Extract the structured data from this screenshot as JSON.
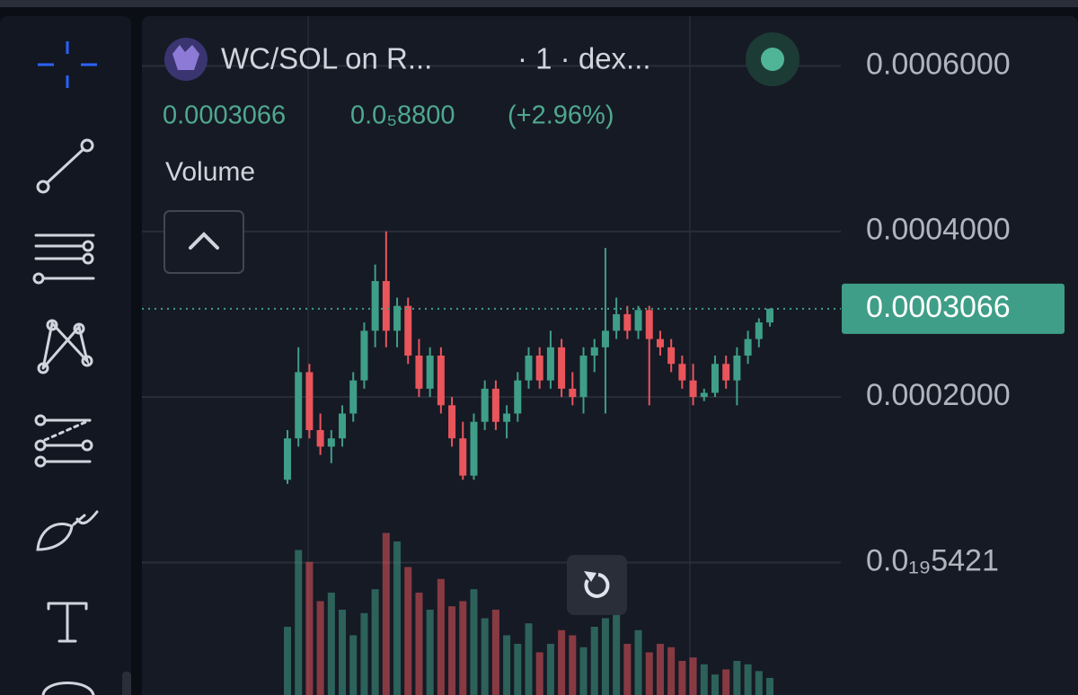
{
  "header": {
    "symbol": "WC/SOL on R...",
    "meta": "· 1 · dex...",
    "price": "0.0003066",
    "change": "0.0₅8800",
    "change_pct": "(+2.96%)",
    "indicator": "Volume"
  },
  "chart_data": {
    "type": "candlestick",
    "up_color": "#3f9e87",
    "down_color": "#e8555b",
    "ylim": [
      -0.00016,
      0.00066
    ],
    "yticks": [
      {
        "value": 0.0006,
        "label": "0.0006000"
      },
      {
        "value": 0.0004,
        "label": "0.0004000"
      },
      {
        "value": 0.0002,
        "label": "0.0002000"
      },
      {
        "value": 5.421e-20,
        "label": "0.0₁₉5421"
      }
    ],
    "grid": true,
    "last_price": 0.0003066,
    "open": [
      0.0001,
      0.00015,
      0.00023,
      0.00016,
      0.00014,
      0.00015,
      0.00018,
      0.00022,
      0.00028,
      0.00034,
      0.00028,
      0.00031,
      0.00025,
      0.00021,
      0.00025,
      0.00019,
      0.00015,
      0.000105,
      0.00017,
      0.00021,
      0.00017,
      0.00018,
      0.00022,
      0.00025,
      0.00022,
      0.00026,
      0.00021,
      0.0002,
      0.00025,
      0.00026,
      0.00028,
      0.0003,
      0.00028,
      0.000305,
      0.00027,
      0.00026,
      0.00024,
      0.00022,
      0.0002,
      0.000205,
      0.00024,
      0.00022,
      0.00025,
      0.00027,
      0.00029
    ],
    "high": [
      0.00016,
      0.00026,
      0.00024,
      0.00018,
      0.00016,
      0.00019,
      0.00023,
      0.00029,
      0.00036,
      0.0004,
      0.00032,
      0.00032,
      0.00027,
      0.00026,
      0.00026,
      0.0002,
      0.00017,
      0.00018,
      0.00022,
      0.00022,
      0.00019,
      0.00023,
      0.00026,
      0.00026,
      0.00028,
      0.00027,
      0.00023,
      0.00026,
      0.00027,
      0.00038,
      0.00032,
      0.00031,
      0.00031,
      0.00031,
      0.00028,
      0.00027,
      0.00025,
      0.00024,
      0.00021,
      0.00025,
      0.00025,
      0.00026,
      0.00028,
      0.000295,
      0.000307
    ],
    "low": [
      9.5e-05,
      0.00014,
      0.00015,
      0.00013,
      0.00012,
      0.00014,
      0.00017,
      0.00021,
      0.00026,
      0.00026,
      0.00026,
      0.00024,
      0.0002,
      0.0002,
      0.00018,
      0.00014,
      0.0001,
      0.0001,
      0.00016,
      0.00016,
      0.00015,
      0.00017,
      0.00021,
      0.00021,
      0.00021,
      0.0002,
      0.00019,
      0.00018,
      0.00023,
      0.00018,
      0.00027,
      0.00027,
      0.00027,
      0.00019,
      0.00025,
      0.00023,
      0.00021,
      0.00019,
      0.000195,
      0.0002,
      0.00021,
      0.00019,
      0.00024,
      0.00026,
      0.000285
    ],
    "close": [
      0.00015,
      0.00023,
      0.00016,
      0.00014,
      0.00015,
      0.00018,
      0.00022,
      0.00028,
      0.00034,
      0.00028,
      0.00031,
      0.00025,
      0.00021,
      0.00025,
      0.00019,
      0.00015,
      0.000105,
      0.00017,
      0.00021,
      0.00017,
      0.00018,
      0.00022,
      0.00025,
      0.00022,
      0.00026,
      0.00021,
      0.0002,
      0.00025,
      0.00026,
      0.00028,
      0.0003,
      0.00028,
      0.000305,
      0.00027,
      0.00026,
      0.00024,
      0.00022,
      0.0002,
      0.000205,
      0.00024,
      0.00022,
      0.00025,
      0.00027,
      0.00029,
      0.0003066
    ],
    "volume": [
      40,
      85,
      78,
      55,
      60,
      50,
      35,
      48,
      62,
      95,
      90,
      75,
      60,
      50,
      68,
      52,
      55,
      62,
      45,
      50,
      35,
      30,
      42,
      25,
      30,
      38,
      35,
      28,
      40,
      45,
      50,
      30,
      38,
      25,
      30,
      28,
      20,
      22,
      18,
      12,
      15,
      20,
      18,
      14,
      10
    ],
    "volume_lim": [
      0,
      100
    ]
  }
}
